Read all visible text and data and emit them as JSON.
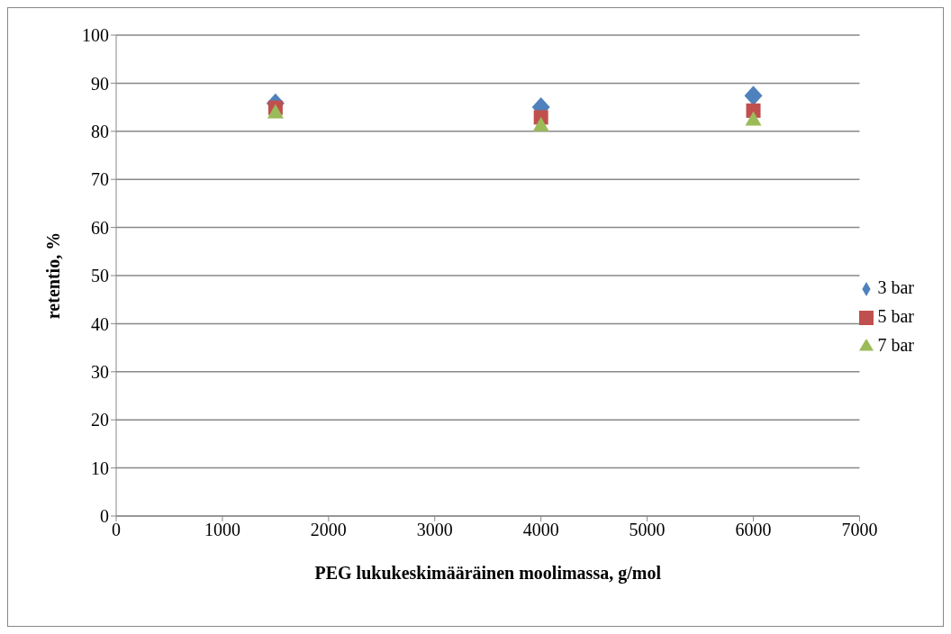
{
  "chart_data": {
    "type": "scatter",
    "xlabel": "PEG lukukeskimääräinen moolimassa, g/mol",
    "ylabel": "retentio, %",
    "x": [
      1500,
      4000,
      6000
    ],
    "xlim": [
      0,
      7000
    ],
    "xticks": [
      0,
      1000,
      2000,
      3000,
      4000,
      5000,
      6000,
      7000
    ],
    "ylim": [
      0,
      100
    ],
    "yticks": [
      0,
      10,
      20,
      30,
      40,
      50,
      60,
      70,
      80,
      90,
      100
    ],
    "grid": "y",
    "legend": "right",
    "series": [
      {
        "name": "3 bar",
        "color": "#4f81bd",
        "marker": "diamond",
        "values": [
          85.8,
          85.0,
          87.4
        ]
      },
      {
        "name": "5 bar",
        "color": "#c0504d",
        "marker": "square",
        "values": [
          84.9,
          82.9,
          84.3
        ]
      },
      {
        "name": "7 bar",
        "color": "#9bbb59",
        "marker": "triangle",
        "values": [
          84.0,
          81.3,
          82.5
        ]
      }
    ]
  }
}
